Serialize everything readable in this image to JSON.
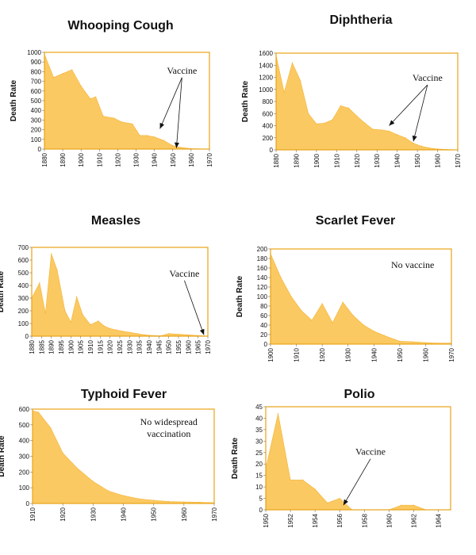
{
  "chart_data": [
    {
      "type": "area",
      "title": "Whooping Cough",
      "ylabel": "Death Rate",
      "xlabel": "",
      "xlim": [
        1880,
        1970
      ],
      "ylim": [
        0,
        1000
      ],
      "yticks": [
        0,
        100,
        200,
        300,
        400,
        500,
        600,
        700,
        800,
        900,
        1000
      ],
      "xticks": [
        1880,
        1890,
        1900,
        1910,
        1920,
        1930,
        1940,
        1950,
        1960,
        1970
      ],
      "rotate_x": true,
      "x": [
        1880,
        1885,
        1890,
        1895,
        1900,
        1905,
        1908,
        1912,
        1918,
        1922,
        1928,
        1932,
        1936,
        1940,
        1945,
        1950,
        1955,
        1960,
        1965,
        1970
      ],
      "values": [
        980,
        740,
        780,
        820,
        650,
        520,
        540,
        340,
        320,
        280,
        260,
        140,
        140,
        125,
        90,
        35,
        15,
        5,
        2,
        0
      ],
      "annotation": {
        "text": "Vaccine",
        "x": 1955,
        "y": 780,
        "arrows": [
          [
            1943,
            210
          ],
          [
            1952,
            10
          ]
        ]
      }
    },
    {
      "type": "area",
      "title": "Diphtheria",
      "ylabel": "Death Rate",
      "xlabel": "",
      "xlim": [
        1880,
        1970
      ],
      "ylim": [
        0,
        1600
      ],
      "yticks": [
        0,
        200,
        400,
        600,
        800,
        1000,
        1200,
        1400,
        1600
      ],
      "xticks": [
        1880,
        1890,
        1900,
        1910,
        1920,
        1930,
        1940,
        1950,
        1960,
        1970
      ],
      "rotate_x": true,
      "x": [
        1880,
        1884,
        1888,
        1892,
        1896,
        1900,
        1904,
        1908,
        1912,
        1916,
        1920,
        1924,
        1928,
        1932,
        1936,
        1940,
        1944,
        1948,
        1952,
        1956,
        1960,
        1965,
        1970
      ],
      "values": [
        1560,
        950,
        1440,
        1150,
        600,
        430,
        440,
        500,
        730,
        690,
        560,
        440,
        340,
        330,
        310,
        250,
        200,
        110,
        60,
        30,
        15,
        5,
        0
      ],
      "annotation": {
        "text": "Vaccine",
        "x": 1955,
        "y": 1140,
        "arrows": [
          [
            1936,
            400
          ],
          [
            1948,
            140
          ]
        ]
      }
    },
    {
      "type": "area",
      "title": "Measles",
      "ylabel": "Death Rate",
      "xlabel": "",
      "xlim": [
        1880,
        1970
      ],
      "ylim": [
        0,
        700
      ],
      "yticks": [
        0,
        100,
        200,
        300,
        400,
        500,
        600,
        700
      ],
      "xticks": [
        1880,
        1885,
        1890,
        1895,
        1900,
        1905,
        1910,
        1915,
        1920,
        1925,
        1930,
        1935,
        1940,
        1945,
        1950,
        1955,
        1960,
        1965,
        1970
      ],
      "rotate_x": true,
      "x": [
        1880,
        1884,
        1887,
        1890,
        1893,
        1897,
        1900,
        1903,
        1906,
        1910,
        1914,
        1917,
        1920,
        1923,
        1926,
        1930,
        1934,
        1938,
        1942,
        1946,
        1950,
        1955,
        1960,
        1965,
        1970
      ],
      "values": [
        300,
        420,
        180,
        650,
        520,
        200,
        110,
        310,
        170,
        90,
        120,
        80,
        60,
        50,
        40,
        30,
        20,
        10,
        5,
        3,
        20,
        15,
        10,
        5,
        0
      ],
      "annotation": {
        "text": "Vaccine",
        "x": 1958,
        "y": 470,
        "arrows": [
          [
            1968,
            10
          ]
        ]
      }
    },
    {
      "type": "area",
      "title": "Scarlet Fever",
      "ylabel": "Death Rate",
      "xlabel": "",
      "xlim": [
        1900,
        1970
      ],
      "ylim": [
        0,
        200
      ],
      "yticks": [
        0,
        20,
        40,
        60,
        80,
        100,
        120,
        140,
        160,
        180,
        200
      ],
      "xticks": [
        1900,
        1910,
        1920,
        1930,
        1940,
        1950,
        1960,
        1970
      ],
      "rotate_x": true,
      "x": [
        1900,
        1904,
        1908,
        1912,
        1916,
        1920,
        1924,
        1928,
        1932,
        1936,
        1940,
        1944,
        1948,
        1950,
        1955,
        1960,
        1965,
        1970
      ],
      "values": [
        190,
        140,
        100,
        70,
        50,
        85,
        45,
        88,
        60,
        40,
        27,
        18,
        10,
        6,
        5,
        3,
        2,
        2
      ],
      "annotation": {
        "text": "No vaccine",
        "x": 1955,
        "y": 160,
        "arrows": []
      }
    },
    {
      "type": "area",
      "title": "Typhoid Fever",
      "ylabel": "Death Rate",
      "xlabel": "",
      "xlim": [
        1910,
        1970
      ],
      "ylim": [
        0,
        600
      ],
      "yticks": [
        0,
        100,
        200,
        300,
        400,
        500,
        600
      ],
      "xticks": [
        1910,
        1920,
        1930,
        1940,
        1950,
        1960,
        1970
      ],
      "rotate_x": true,
      "x": [
        1910,
        1912,
        1916,
        1920,
        1925,
        1930,
        1935,
        1940,
        1945,
        1950,
        1955,
        1960,
        1965,
        1970
      ],
      "values": [
        590,
        580,
        480,
        320,
        220,
        140,
        80,
        50,
        30,
        20,
        12,
        10,
        8,
        5
      ],
      "annotation": {
        "text": "No widespread vaccination",
        "x": 1955,
        "y": 500,
        "arrows": []
      }
    },
    {
      "type": "area",
      "title": "Polio",
      "ylabel": "Death Rate",
      "xlabel": "",
      "xlim": [
        1950,
        1965
      ],
      "ylim": [
        0,
        45
      ],
      "yticks": [
        0,
        5,
        10,
        15,
        20,
        25,
        30,
        35,
        40,
        45
      ],
      "xticks": [
        1950,
        1952,
        1954,
        1956,
        1958,
        1960,
        1962,
        1964
      ],
      "rotate_x": true,
      "x": [
        1950,
        1951,
        1952,
        1953,
        1954,
        1955,
        1956,
        1957,
        1958,
        1959,
        1960,
        1961,
        1962,
        1963,
        1964,
        1965
      ],
      "values": [
        18,
        42,
        13,
        13,
        9,
        3,
        5,
        0,
        0,
        0,
        0,
        2,
        2,
        0,
        0,
        0
      ],
      "annotation": {
        "text": "Vaccine",
        "x": 1958.5,
        "y": 24,
        "arrows": [
          [
            1956.3,
            2
          ]
        ]
      }
    }
  ]
}
